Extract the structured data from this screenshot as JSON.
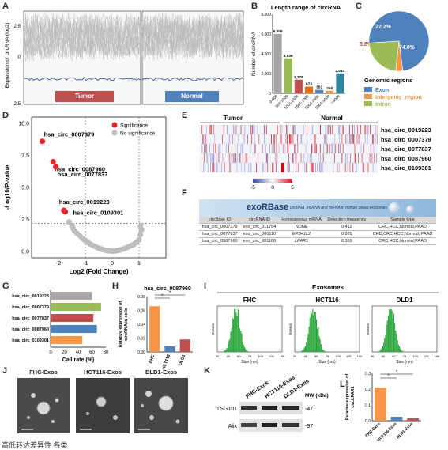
{
  "panels": {
    "A": "A",
    "B": "B",
    "C": "C",
    "D": "D",
    "E": "E",
    "F": "F",
    "G": "G",
    "H": "H",
    "I": "I",
    "J": "J",
    "K": "K",
    "L": "L"
  },
  "panel_a": {
    "ylabel": "Expression of circRNA (log2)",
    "yticks": [
      "2.5",
      "0",
      "-2.5"
    ],
    "tumor_label": "Tumor",
    "normal_label": "Normal",
    "tumor_color": "#c0504d",
    "normal_color": "#4f81bd"
  },
  "chart_data": [
    {
      "id": "B",
      "type": "bar",
      "title": "Length range of circRNA",
      "ylabel": "Number of circRNA",
      "categories": [
        "0-500",
        "501-1000",
        "1001-1500",
        "1501-2000",
        "2001-2500",
        "2501-3000",
        ">3000"
      ],
      "values": [
        6009,
        3536,
        1378,
        673,
        351,
        260,
        2014
      ],
      "value_labels": [
        "6,009",
        "3,536",
        "1,378",
        "673",
        "351",
        "260",
        "2,014"
      ],
      "colors": [
        "#a6a6a6",
        "#9bbb59",
        "#c0504d",
        "#e46c0a",
        "#4f81bd",
        "#f79646",
        "#31859c"
      ],
      "ylim": [
        0,
        8000
      ],
      "yticks": [
        "0",
        "2,000",
        "4,000",
        "6,000",
        "8,000"
      ]
    },
    {
      "id": "C",
      "type": "pie",
      "legend_title": "Genomic regions",
      "slices": [
        {
          "name": "Exon",
          "value": 74.0,
          "label": "74.0%",
          "color": "#4f81bd"
        },
        {
          "name": "Intergenic_region",
          "value": 3.8,
          "label": "3.8%",
          "color": "#f79646"
        },
        {
          "name": "Intron",
          "value": 22.2,
          "label": "22.2%",
          "color": "#9bbb59"
        }
      ]
    },
    {
      "id": "D",
      "type": "scatter",
      "xlabel": "Log2 (Fold Change)",
      "ylabel": "-Log10/P-value",
      "xlim": [
        -3,
        2
      ],
      "ylim": [
        -0.5,
        10.5
      ],
      "xticks": [
        "-2",
        "-1",
        "0",
        "1"
      ],
      "yticks": [
        "0.0",
        "2.5",
        "5.0",
        "7.5",
        "10.0"
      ],
      "legend": [
        "Significance",
        "No significance"
      ],
      "significant_points": [
        {
          "x": -2.6,
          "y": 8.6,
          "label": "hsa_circ_0007379"
        },
        {
          "x": -2.2,
          "y": 7.0,
          "label": "hsa_circ_0087960"
        },
        {
          "x": -2.1,
          "y": 6.6,
          "label": "hsa_circ_0077837"
        },
        {
          "x": -1.8,
          "y": 3.2,
          "label": "hsa_circ_0019223"
        },
        {
          "x": -1.75,
          "y": 3.1,
          "label": "hsa_circ_0109301"
        }
      ],
      "nonsig_points": [
        {
          "x": -1.6,
          "y": 2.3
        },
        {
          "x": -1.5,
          "y": 2.0
        },
        {
          "x": -1.45,
          "y": 1.8
        },
        {
          "x": -1.4,
          "y": 1.6
        },
        {
          "x": -1.3,
          "y": 1.4
        },
        {
          "x": -1.2,
          "y": 1.2
        },
        {
          "x": -1.1,
          "y": 1.0
        },
        {
          "x": -1.0,
          "y": 0.85
        },
        {
          "x": -0.9,
          "y": 0.7
        },
        {
          "x": -0.8,
          "y": 0.55
        },
        {
          "x": -0.7,
          "y": 0.45
        },
        {
          "x": -0.6,
          "y": 0.35
        },
        {
          "x": -0.5,
          "y": 0.25
        },
        {
          "x": -0.4,
          "y": 0.18
        },
        {
          "x": -0.3,
          "y": 0.12
        },
        {
          "x": -0.2,
          "y": 0.07
        },
        {
          "x": -0.1,
          "y": 0.04
        },
        {
          "x": 0.0,
          "y": 0.02
        },
        {
          "x": 0.1,
          "y": 0.04
        },
        {
          "x": 0.2,
          "y": 0.07
        },
        {
          "x": 0.3,
          "y": 0.12
        },
        {
          "x": 0.4,
          "y": 0.18
        },
        {
          "x": 0.5,
          "y": 0.25
        },
        {
          "x": 0.6,
          "y": 0.35
        },
        {
          "x": 0.7,
          "y": 0.45
        },
        {
          "x": 0.8,
          "y": 0.55
        },
        {
          "x": 0.9,
          "y": 0.7
        },
        {
          "x": 1.0,
          "y": 0.9
        },
        {
          "x": 1.05,
          "y": 1.3
        },
        {
          "x": 1.1,
          "y": 1.7
        },
        {
          "x": 1.05,
          "y": 2.0
        }
      ]
    },
    {
      "id": "G",
      "type": "bar",
      "orientation": "horizontal",
      "xlabel": "Call rate (%)",
      "xlim": [
        0,
        80
      ],
      "xticks": [
        "0",
        "20",
        "40",
        "60",
        "80"
      ],
      "categories": [
        "hsa_circ_0019223",
        "hsa_circ_0007379",
        "hsa_circ_0077837",
        "hsa_circ_0087960",
        "hsa_circ_0109301"
      ],
      "values": [
        60,
        73,
        62,
        67,
        46
      ],
      "colors": [
        "#a6a6a6",
        "#9bbb59",
        "#c0504d",
        "#4f81bd",
        "#f79646"
      ]
    },
    {
      "id": "H",
      "type": "bar",
      "title": "hsa_circ_0087960",
      "ylabel": "Relative expression of circRNA in cells",
      "categories": [
        "FHC",
        "HCT116",
        "DLD1"
      ],
      "values": [
        0.066,
        0.008,
        0.018
      ],
      "colors": [
        "#f79646",
        "#4f81bd",
        "#c0504d"
      ],
      "ylim": [
        0,
        0.08
      ],
      "yticks": [
        "0.00",
        "0.02",
        "0.04",
        "0.06",
        "0.08"
      ],
      "annotations": [
        "*",
        "*"
      ]
    },
    {
      "id": "I",
      "type": "bar",
      "title": "Exosomes",
      "subplots": [
        "FHC",
        "HCT116",
        "DLD1"
      ],
      "xlabel": "Size (nm)",
      "ylabel": "Events",
      "xticks": [
        "30",
        "45",
        "60",
        "75",
        "100",
        "125",
        "150"
      ]
    },
    {
      "id": "L",
      "type": "bar",
      "ylabel": "Relative expression of circLPAR1",
      "categories": [
        "FHC-Exos",
        "HCT116-Exos",
        "DLD1-Exos"
      ],
      "values": [
        0.21,
        0.025,
        0.015
      ],
      "colors": [
        "#f79646",
        "#4f81bd",
        "#c0504d"
      ],
      "ylim": [
        0,
        0.3
      ],
      "yticks": [
        "0.0",
        "0.1",
        "0.2",
        "0.3"
      ],
      "annotations": [
        "*",
        "*"
      ]
    }
  ],
  "panel_e": {
    "tumor_label": "Tumor",
    "normal_label": "Normal",
    "rows": [
      "hsa_circ_0019223",
      "hsa_circ_0007379",
      "hsa_circ_0077837",
      "hsa_circ_0087960",
      "hsa_circ_0109301"
    ],
    "scale_ticks": [
      "-5",
      "0",
      "5"
    ]
  },
  "panel_f": {
    "logo": "exoRBase",
    "subtitle": "circRNA, lncRNA and mRNA in human blood exosomes",
    "headers": [
      "circBase ID",
      "circRNA ID",
      "Homogenous mRNA",
      "Detection frequency",
      "Sample type"
    ],
    "rows": [
      [
        "hsa_circ_0007379",
        "exo_circ_011754",
        "NONE",
        "0.412",
        "CRC,HCC,Normal,PAAD"
      ],
      [
        "hsa_circ_0077837",
        "exo_circ_000110",
        "EPB41L2",
        "0.929",
        "CHD,CRC,HCC,Normal, PAAD"
      ],
      [
        "hsa_circ_0087960",
        "exo_circ_001168",
        "LPAR1",
        "0.365",
        "CRC,HCC,Normal,PAAD"
      ]
    ]
  },
  "panel_j": {
    "labels": [
      "FHC-Exos",
      "HCT116-Exos",
      "DLD1-Exos"
    ]
  },
  "panel_k": {
    "lanes": [
      "FHC-Exos",
      "HCT116-Exos",
      "DLD1-Exos"
    ],
    "mw_label": "MW (kDa)",
    "bands": [
      {
        "name": "TSG101",
        "mw": "-47"
      },
      {
        "name": "Alix",
        "mw": "-97"
      }
    ]
  },
  "footer": {
    "text": "高低转达差异性 各类"
  }
}
